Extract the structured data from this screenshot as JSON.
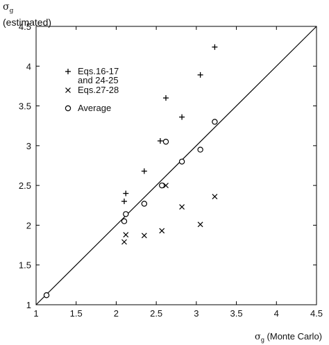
{
  "chart_data": {
    "type": "scatter",
    "y_title_symbol": "σ",
    "y_title_subscript": "g",
    "y_title_text": "(estimated)",
    "x_title_symbol": "σ",
    "x_title_subscript": "g",
    "x_title_text": " (Monte Carlo)",
    "xlim": [
      1,
      4.5
    ],
    "ylim": [
      1,
      4.5
    ],
    "xticks": [
      "1",
      "1.5",
      "2",
      "2.5",
      "3",
      "3.5",
      "4",
      "4.5"
    ],
    "yticks": [
      "1",
      "1.5",
      "2",
      "2.5",
      "3",
      "3.5",
      "4",
      "4.5"
    ],
    "grid": false,
    "legend_position": "top-left",
    "reference_line": {
      "type": "identity",
      "from": [
        1,
        1
      ],
      "to": [
        4.5,
        4.5
      ]
    },
    "series": [
      {
        "name": "Eqs.16-17 and 24-25",
        "name_lines": [
          "Eqs.16-17",
          "and 24-25"
        ],
        "marker": "plus",
        "points": [
          [
            2.1,
            2.3
          ],
          [
            2.12,
            2.4
          ],
          [
            2.35,
            2.68
          ],
          [
            2.55,
            3.06
          ],
          [
            2.62,
            3.6
          ],
          [
            2.82,
            3.36
          ],
          [
            3.05,
            3.89
          ],
          [
            3.23,
            4.24
          ]
        ]
      },
      {
        "name": "Eqs.27-28",
        "name_lines": [
          "Eqs.27-28"
        ],
        "marker": "x",
        "points": [
          [
            2.1,
            1.79
          ],
          [
            2.12,
            1.88
          ],
          [
            2.35,
            1.87
          ],
          [
            2.57,
            1.93
          ],
          [
            2.62,
            2.5
          ],
          [
            2.82,
            2.23
          ],
          [
            3.05,
            2.01
          ],
          [
            3.23,
            2.36
          ]
        ]
      },
      {
        "name": "Average",
        "name_lines": [
          "Average"
        ],
        "marker": "circle",
        "points": [
          [
            1.13,
            1.12
          ],
          [
            2.1,
            2.05
          ],
          [
            2.12,
            2.14
          ],
          [
            2.35,
            2.27
          ],
          [
            2.57,
            2.5
          ],
          [
            2.62,
            3.05
          ],
          [
            2.82,
            2.8
          ],
          [
            3.05,
            2.95
          ],
          [
            3.23,
            3.3
          ]
        ]
      }
    ]
  }
}
